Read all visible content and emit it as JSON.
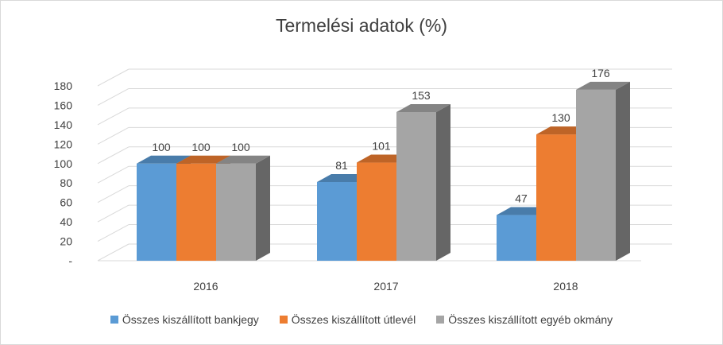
{
  "chart_data": {
    "type": "bar",
    "title": "Termelési adatok (%)",
    "xlabel": "",
    "ylabel": "",
    "categories": [
      "2016",
      "2017",
      "2018"
    ],
    "ylim": [
      0,
      180
    ],
    "yticks": [
      0,
      20,
      40,
      60,
      80,
      100,
      120,
      140,
      160,
      180
    ],
    "ytick_labels": [
      "-",
      "20",
      "40",
      "60",
      "80",
      "100",
      "120",
      "140",
      "160",
      "180"
    ],
    "grid": true,
    "style": "3d-column",
    "legend_position": "bottom",
    "series": [
      {
        "name": "Összes kiszállított bankjegy",
        "color": "#5b9bd5",
        "values": [
          100,
          81,
          47
        ]
      },
      {
        "name": "Összes kiszállított útlevél",
        "color": "#ed7d31",
        "values": [
          100,
          101,
          130
        ]
      },
      {
        "name": "Összes kiszállított egyéb okmány",
        "color": "#a5a5a5",
        "values": [
          100,
          153,
          176
        ]
      }
    ]
  }
}
